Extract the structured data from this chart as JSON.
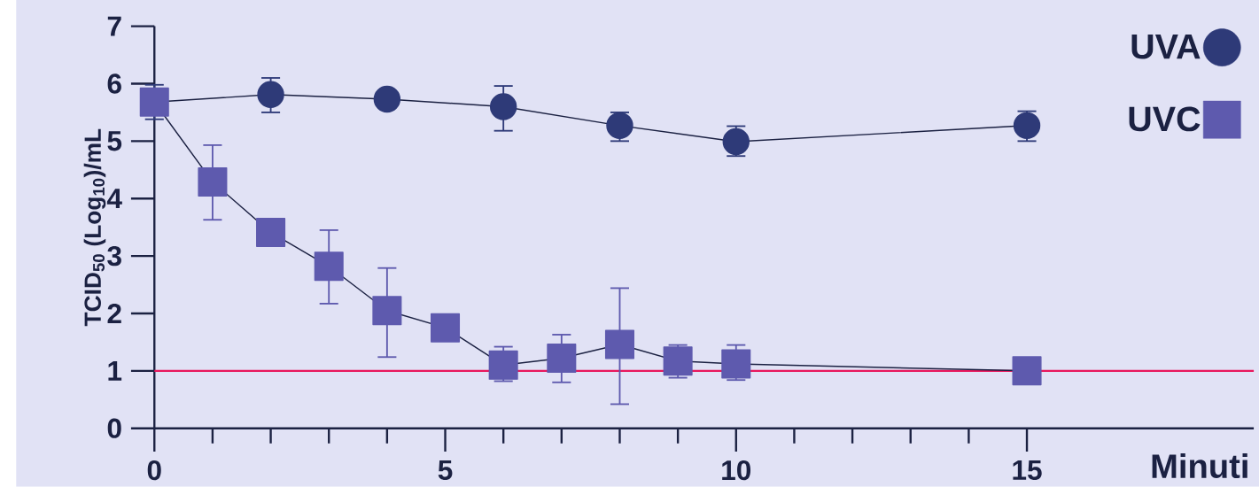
{
  "chart_data": {
    "type": "line",
    "xlabel": "Minuti",
    "ylabel": "TCID$_{50}$ (Log$_{10}$)/mL",
    "xlim": [
      0,
      18.9
    ],
    "ylim": [
      0,
      7
    ],
    "xticks": [
      0,
      5,
      10,
      15
    ],
    "yticks": [
      0,
      1,
      2,
      3,
      4,
      5,
      6,
      7
    ],
    "legend": "top right",
    "series": [
      {
        "name": "UVA",
        "color": "#2e3a78",
        "marker": "circle",
        "x": [
          0,
          2,
          4,
          6,
          8,
          10,
          15
        ],
        "values": [
          5.68,
          5.81,
          5.73,
          5.6,
          5.27,
          4.99,
          5.27
        ],
        "errors": [
          [
            5.38,
            5.98
          ],
          [
            5.5,
            6.1
          ],
          null,
          [
            5.18,
            5.96
          ],
          [
            5.0,
            5.5
          ],
          [
            4.74,
            5.26
          ],
          [
            5.0,
            5.52
          ]
        ]
      },
      {
        "name": "UVC",
        "color": "#5e5aae",
        "marker": "square",
        "x": [
          0,
          1,
          2,
          3,
          4,
          5,
          6,
          7,
          8,
          9,
          10,
          15
        ],
        "values": [
          5.68,
          4.29,
          3.41,
          2.82,
          2.05,
          1.75,
          1.1,
          1.22,
          1.46,
          1.17,
          1.12,
          1.0
        ],
        "errors": [
          null,
          [
            3.63,
            4.93
          ],
          null,
          [
            2.17,
            3.45
          ],
          [
            1.24,
            2.79
          ],
          null,
          [
            0.82,
            1.42
          ],
          [
            0.8,
            1.63
          ],
          [
            0.42,
            2.44
          ],
          [
            0.88,
            1.45
          ],
          [
            0.84,
            1.45
          ],
          null
        ]
      }
    ],
    "ref_lines": [
      {
        "axis": "y",
        "value": 1,
        "color": "#e8175d"
      }
    ]
  }
}
